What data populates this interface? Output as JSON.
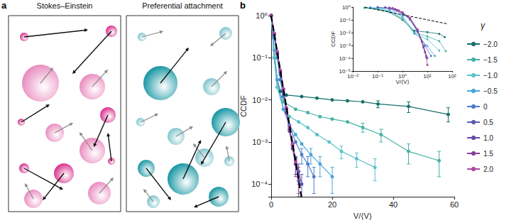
{
  "diagram": {
    "label": "a",
    "panels": [
      {
        "title": "Stokes–Einstein",
        "color": "#d9358f"
      },
      {
        "title": "Preferential attachment",
        "color": "#1f9aa6"
      }
    ]
  },
  "panel_label": "b",
  "chart_data": [
    {
      "type": "line",
      "x_label": "V/⟨V⟩",
      "y_label": "CCDF",
      "log": "y",
      "legend": "right",
      "legend_title": "γ",
      "marker": "circle",
      "xlim": [
        0,
        60
      ],
      "xticks": [
        0,
        20,
        40,
        60
      ],
      "ylim": [
        5e-05,
        1
      ],
      "yticks": [
        {
          "value": 0.0001,
          "label": "10⁻⁴"
        },
        {
          "value": 0.001,
          "label": "10⁻³"
        },
        {
          "value": 0.01,
          "label": "10⁻²"
        },
        {
          "value": 0.1,
          "label": "10⁻¹"
        },
        {
          "value": 1,
          "label": "10⁰"
        }
      ],
      "reference": {
        "x": [
          0,
          2,
          4,
          6,
          8,
          10
        ],
        "values": [
          1,
          0.135,
          0.018,
          0.0025,
          0.00034,
          4.5e-05
        ],
        "color": "#000000",
        "line_style": "dashed"
      },
      "series": [
        {
          "name": "−2.0",
          "color": "#17706c",
          "x": [
            0,
            1,
            2,
            3,
            5,
            10,
            15,
            20,
            25,
            30,
            35,
            45,
            58
          ],
          "values": [
            1,
            0.1,
            0.03,
            0.016,
            0.013,
            0.012,
            0.011,
            0.01,
            0.0095,
            0.009,
            0.008,
            0.007,
            0.0045
          ],
          "y_err": [
            null,
            null,
            null,
            null,
            null,
            null,
            null,
            null,
            null,
            null,
            [
              0.0065,
              0.0095
            ],
            [
              0.005,
              0.009
            ],
            [
              0.003,
              0.0065
            ]
          ]
        },
        {
          "name": "−1.5",
          "color": "#46b2a4",
          "x": [
            0,
            1,
            2,
            4,
            8,
            12,
            16,
            20,
            25,
            30,
            36,
            45,
            55
          ],
          "values": [
            1,
            0.1,
            0.02,
            0.009,
            0.006,
            0.005,
            0.004,
            0.0035,
            0.003,
            0.0022,
            0.0015,
            0.0006,
            0.00036
          ],
          "y_err": [
            null,
            null,
            null,
            null,
            null,
            null,
            null,
            null,
            null,
            [
              0.0017,
              0.0028
            ],
            [
              0.001,
              0.002
            ],
            [
              0.0003,
              0.0009
            ],
            [
              0.00015,
              0.0006
            ]
          ]
        },
        {
          "name": "−1.0",
          "color": "#5cc3c8",
          "x": [
            0,
            1,
            2,
            4,
            6,
            9,
            12,
            15,
            19,
            23,
            28,
            34
          ],
          "values": [
            1,
            0.1,
            0.02,
            0.006,
            0.004,
            0.003,
            0.0022,
            0.0015,
            0.001,
            0.0006,
            0.0004,
            0.00025
          ],
          "y_err": [
            null,
            null,
            null,
            null,
            null,
            null,
            null,
            null,
            null,
            [
              0.0004,
              0.0008
            ],
            [
              0.00025,
              0.00055
            ],
            [
              0.00012,
              0.0004
            ]
          ]
        },
        {
          "name": "−0.5",
          "color": "#4aa6d8",
          "x": [
            0,
            1,
            2,
            4,
            6,
            8,
            10,
            13,
            16,
            20
          ],
          "values": [
            1,
            0.15,
            0.03,
            0.006,
            0.0025,
            0.0015,
            0.0009,
            0.0005,
            0.0003,
            0.00015
          ],
          "y_err": [
            null,
            null,
            null,
            null,
            null,
            null,
            null,
            [
              0.0003,
              0.0007
            ],
            [
              0.00015,
              0.00045
            ],
            [
              6e-05,
              0.00025
            ]
          ]
        },
        {
          "name": "0",
          "color": "#4a7ccc",
          "x": [
            0,
            1,
            2,
            3,
            4,
            5,
            6,
            8,
            10,
            12,
            14
          ],
          "values": [
            1,
            0.3,
            0.1,
            0.03,
            0.012,
            0.005,
            0.0025,
            0.001,
            0.0005,
            0.0003,
            0.00015
          ],
          "y_err": [
            null,
            null,
            null,
            null,
            null,
            null,
            null,
            null,
            [
              0.0003,
              0.0007
            ],
            [
              0.00015,
              0.00045
            ],
            [
              6e-05,
              0.00025
            ]
          ]
        },
        {
          "name": "0.5",
          "color": "#5a5cb6",
          "x": [
            0,
            1,
            2,
            3,
            4,
            5,
            6,
            7,
            8,
            9,
            10
          ],
          "values": [
            1,
            0.35,
            0.12,
            0.04,
            0.013,
            0.005,
            0.002,
            0.0009,
            0.0004,
            0.0002,
            0.0001
          ],
          "y_err": [
            null,
            null,
            null,
            null,
            null,
            null,
            null,
            null,
            null,
            [
              0.0001,
              0.0003
            ],
            [
              4e-05,
              0.00017
            ]
          ]
        },
        {
          "name": "1.0",
          "color": "#6a46a6",
          "x": [
            0,
            1,
            2,
            3,
            4,
            5,
            6,
            7,
            8,
            9
          ],
          "values": [
            1,
            0.37,
            0.13,
            0.045,
            0.015,
            0.005,
            0.0018,
            0.0007,
            0.0003,
            0.00012
          ],
          "y_err": [
            null,
            null,
            null,
            null,
            null,
            null,
            null,
            null,
            [
              0.00017,
              0.00043
            ],
            [
              5e-05,
              0.0002
            ]
          ]
        },
        {
          "name": "1.5",
          "color": "#8a3d9c",
          "x": [
            0,
            1,
            2,
            3,
            4,
            5,
            6,
            7,
            8
          ],
          "values": [
            1,
            0.37,
            0.135,
            0.05,
            0.018,
            0.006,
            0.002,
            0.0008,
            0.0003
          ],
          "y_err": [
            null,
            null,
            null,
            null,
            null,
            null,
            null,
            null,
            [
              0.00015,
              0.00045
            ]
          ]
        },
        {
          "name": "2.0",
          "color": "#a94a9e",
          "x": [
            0,
            1,
            2,
            3,
            4,
            5,
            6,
            7,
            8,
            9
          ],
          "values": [
            1,
            0.38,
            0.14,
            0.05,
            0.018,
            0.0065,
            0.0023,
            0.0009,
            0.00035,
            0.00015
          ],
          "y_err": [
            null,
            null,
            null,
            null,
            null,
            null,
            null,
            null,
            null,
            [
              6e-05,
              0.00025
            ]
          ]
        }
      ]
    },
    {
      "type": "line",
      "x_label": "V/⟨V⟩",
      "y_label": "CCDF",
      "log": true,
      "marker": "circle",
      "xlim": [
        0.01,
        100
      ],
      "xticks": [
        {
          "value": 0.01,
          "label": "10⁻²"
        },
        {
          "value": 0.1,
          "label": "10⁻¹"
        },
        {
          "value": 1,
          "label": "10⁰"
        },
        {
          "value": 10,
          "label": "10¹"
        },
        {
          "value": 100,
          "label": "10²"
        }
      ],
      "ylim": [
        1e-05,
        1
      ],
      "yticks": [
        {
          "value": 1e-05,
          "label": "10⁻⁵"
        },
        {
          "value": 0.0001,
          "label": "10⁻⁴"
        },
        {
          "value": 0.001,
          "label": "10⁻³"
        },
        {
          "value": 0.01,
          "label": "10⁻²"
        },
        {
          "value": 0.1,
          "label": "10⁻¹"
        },
        {
          "value": 1,
          "label": "10⁰"
        }
      ],
      "reference": {
        "x": [
          0.03,
          60
        ],
        "values": [
          1,
          0.05
        ],
        "color": "#000000",
        "line_style": "dashed"
      },
      "series": [
        {
          "name": "−2.0",
          "color": "#17706c",
          "x": [
            0.03,
            0.1,
            0.3,
            1,
            3,
            10,
            30,
            50
          ],
          "values": [
            0.9,
            0.7,
            0.4,
            0.1,
            0.014,
            0.011,
            0.008,
            0.0045
          ]
        },
        {
          "name": "−1.5",
          "color": "#46b2a4",
          "x": [
            0.03,
            0.1,
            0.3,
            1,
            3,
            10,
            30,
            55
          ],
          "values": [
            0.85,
            0.65,
            0.4,
            0.12,
            0.01,
            0.005,
            0.0022,
            0.00036
          ]
        },
        {
          "name": "−1.0",
          "color": "#5cc3c8",
          "x": [
            0.05,
            0.1,
            0.3,
            1,
            3,
            10,
            30
          ],
          "values": [
            0.9,
            0.75,
            0.45,
            0.15,
            0.008,
            0.003,
            0.0004
          ]
        },
        {
          "name": "−0.5",
          "color": "#4aa6d8",
          "x": [
            0.05,
            0.1,
            0.3,
            1,
            3,
            10,
            20
          ],
          "values": [
            0.95,
            0.85,
            0.55,
            0.2,
            0.01,
            0.0009,
            0.00015
          ]
        },
        {
          "name": "0",
          "color": "#4a7ccc",
          "x": [
            0.1,
            0.3,
            1,
            2,
            4,
            8,
            14
          ],
          "values": [
            0.95,
            0.75,
            0.3,
            0.1,
            0.012,
            0.001,
            0.00015
          ]
        },
        {
          "name": "0.5",
          "color": "#5a5cb6",
          "x": [
            0.1,
            0.3,
            1,
            2,
            4,
            7,
            10
          ],
          "values": [
            0.98,
            0.8,
            0.35,
            0.12,
            0.013,
            0.0009,
            0.0001
          ]
        },
        {
          "name": "1.0",
          "color": "#6a46a6",
          "x": [
            0.2,
            0.5,
            1,
            2,
            4,
            7,
            9
          ],
          "values": [
            0.95,
            0.7,
            0.37,
            0.13,
            0.015,
            0.0007,
            0.00012
          ]
        },
        {
          "name": "1.5",
          "color": "#8a3d9c",
          "x": [
            0.3,
            0.6,
            1,
            2,
            4,
            6,
            8
          ],
          "values": [
            0.9,
            0.6,
            0.37,
            0.135,
            0.018,
            0.002,
            0.0003
          ]
        },
        {
          "name": "2.0",
          "color": "#a94a9e",
          "x": [
            0.4,
            0.7,
            1,
            2,
            4,
            7,
            9,
            10
          ],
          "values": [
            0.85,
            0.55,
            0.38,
            0.14,
            0.018,
            0.0009,
            0.00015,
            3e-05
          ]
        }
      ]
    }
  ]
}
